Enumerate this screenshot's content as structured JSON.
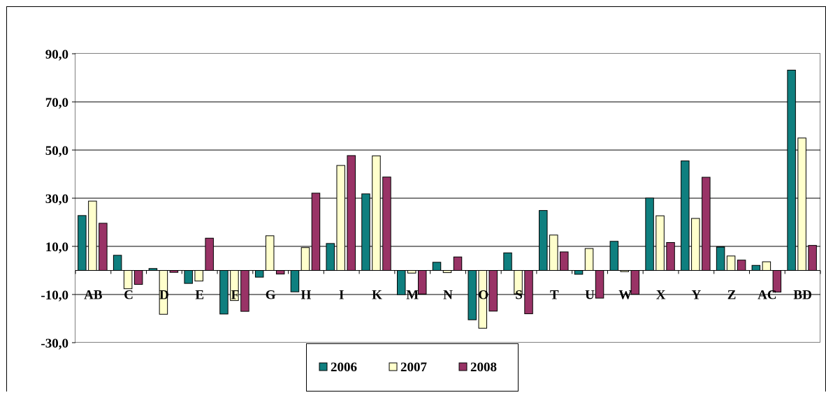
{
  "chart_data": {
    "type": "bar",
    "categories": [
      "AB",
      "C",
      "D",
      "E",
      "F",
      "G",
      "H",
      "I",
      "K",
      "M",
      "N",
      "O",
      "S",
      "T",
      "U",
      "W",
      "X",
      "Y",
      "Z",
      "AC",
      "BD"
    ],
    "series": [
      {
        "name": "2006",
        "color": "#0f7f7f",
        "values": [
          22.8,
          6.3,
          0.8,
          -5.4,
          -18.1,
          -2.8,
          -8.9,
          11.2,
          31.8,
          -10.1,
          3.4,
          -20.5,
          7.3,
          24.9,
          -1.6,
          12.1,
          30.1,
          45.5,
          9.7,
          2.1,
          83.2
        ]
      },
      {
        "name": "2007",
        "color": "#ffffcc",
        "values": [
          28.8,
          -7.6,
          -18.2,
          -4.4,
          -12.5,
          14.4,
          9.5,
          43.6,
          47.6,
          -1.1,
          -0.9,
          -24.0,
          -9.7,
          14.7,
          9.1,
          -0.5,
          22.7,
          21.6,
          6.0,
          3.6,
          55.0
        ]
      },
      {
        "name": "2008",
        "color": "#993366",
        "values": [
          19.6,
          -5.8,
          -0.8,
          13.4,
          -17.0,
          -1.5,
          32.1,
          47.7,
          38.8,
          -9.8,
          5.6,
          -16.9,
          -18.0,
          7.7,
          -11.5,
          -9.9,
          11.6,
          38.7,
          4.3,
          -9.0,
          10.4
        ]
      }
    ],
    "yticks": [
      "-30,0",
      "-10,0",
      "10,0",
      "30,0",
      "50,0",
      "70,0",
      "90,0"
    ],
    "ylim": [
      -30,
      90
    ],
    "grid": true,
    "legend_position": "bottom"
  }
}
